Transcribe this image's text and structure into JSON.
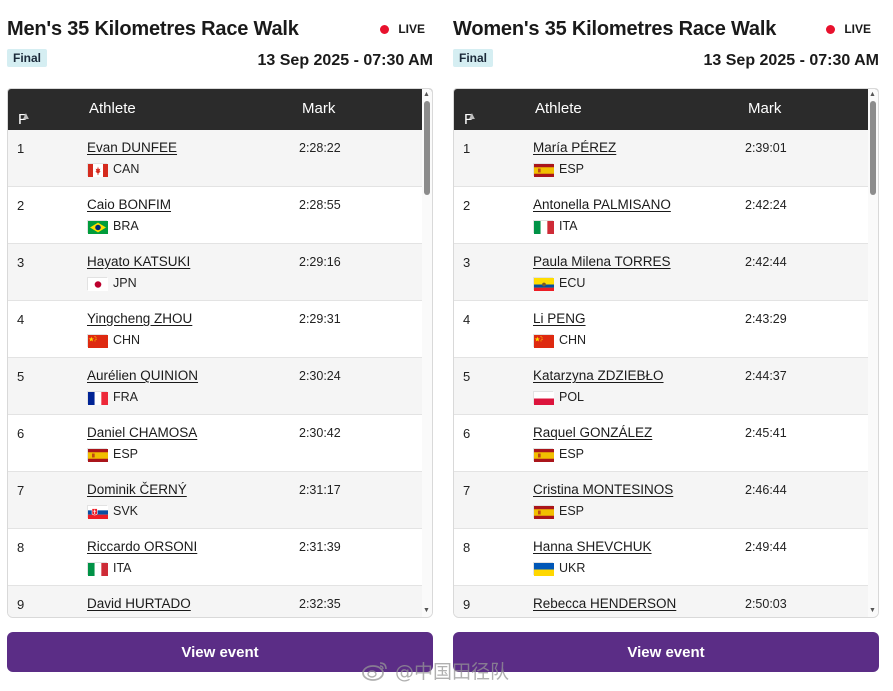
{
  "panels": [
    {
      "title": "Men's 35 Kilometres Race Walk",
      "live_label": "LIVE",
      "badge": "Final",
      "datetime": "13 Sep 2025 - 07:30 AM",
      "columns": {
        "pos": "P",
        "athlete": "Athlete",
        "mark": "Mark"
      },
      "button": "View event",
      "rows": [
        {
          "pos": "1",
          "name": "Evan DUNFEE",
          "country": "CAN",
          "mark": "2:28:22"
        },
        {
          "pos": "2",
          "name": "Caio BONFIM",
          "country": "BRA",
          "mark": "2:28:55"
        },
        {
          "pos": "3",
          "name": "Hayato KATSUKI",
          "country": "JPN",
          "mark": "2:29:16"
        },
        {
          "pos": "4",
          "name": "Yingcheng ZHOU",
          "country": "CHN",
          "mark": "2:29:31"
        },
        {
          "pos": "5",
          "name": "Aurélien QUINION",
          "country": "FRA",
          "mark": "2:30:24"
        },
        {
          "pos": "6",
          "name": "Daniel CHAMOSA",
          "country": "ESP",
          "mark": "2:30:42"
        },
        {
          "pos": "7",
          "name": "Dominik ČERNÝ",
          "country": "SVK",
          "mark": "2:31:17"
        },
        {
          "pos": "8",
          "name": "Riccardo ORSONI",
          "country": "ITA",
          "mark": "2:31:39"
        },
        {
          "pos": "9",
          "name": "David HURTADO",
          "country": "",
          "mark": "2:32:35"
        }
      ]
    },
    {
      "title": "Women's 35 Kilometres Race Walk",
      "live_label": "LIVE",
      "badge": "Final",
      "datetime": "13 Sep 2025 - 07:30 AM",
      "columns": {
        "pos": "P",
        "athlete": "Athlete",
        "mark": "Mark"
      },
      "button": "View event",
      "rows": [
        {
          "pos": "1",
          "name": "María PÉREZ",
          "country": "ESP",
          "mark": "2:39:01"
        },
        {
          "pos": "2",
          "name": "Antonella PALMISANO",
          "country": "ITA",
          "mark": "2:42:24"
        },
        {
          "pos": "3",
          "name": "Paula Milena TORRES",
          "country": "ECU",
          "mark": "2:42:44"
        },
        {
          "pos": "4",
          "name": "Li PENG",
          "country": "CHN",
          "mark": "2:43:29"
        },
        {
          "pos": "5",
          "name": "Katarzyna ZDZIEBŁO",
          "country": "POL",
          "mark": "2:44:37"
        },
        {
          "pos": "6",
          "name": "Raquel GONZÁLEZ",
          "country": "ESP",
          "mark": "2:45:41"
        },
        {
          "pos": "7",
          "name": "Cristina MONTESINOS",
          "country": "ESP",
          "mark": "2:46:44"
        },
        {
          "pos": "8",
          "name": "Hanna SHEVCHUK",
          "country": "UKR",
          "mark": "2:49:44"
        },
        {
          "pos": "9",
          "name": "Rebecca HENDERSON",
          "country": "",
          "mark": "2:50:03"
        }
      ]
    }
  ],
  "watermark": "@中国田径队",
  "colors": {
    "accent": "#5b2d86",
    "header_bg": "#2b2b2b",
    "live_dot": "#e8112d",
    "badge_bg": "#d5eef2"
  }
}
